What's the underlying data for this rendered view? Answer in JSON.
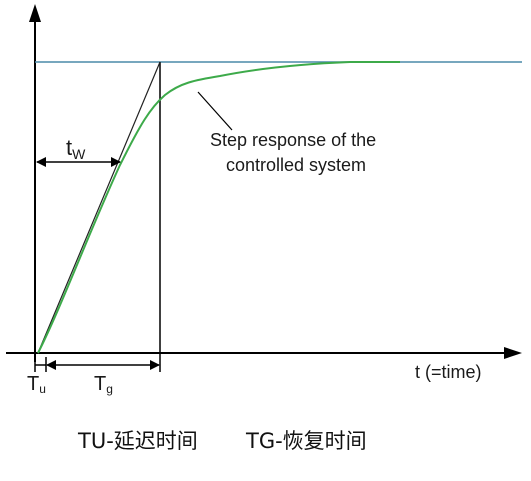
{
  "labels": {
    "tw": {
      "main": "t",
      "sub": "W"
    },
    "tu": {
      "main": "T",
      "sub": "u"
    },
    "tg": {
      "main": "T",
      "sub": "g"
    },
    "annotation_line1": "Step response of the",
    "annotation_line2": "controlled system",
    "x_axis": "t (=time)"
  },
  "caption": {
    "tu": "TU-延迟时间",
    "tg": "TG-恢复时间"
  },
  "colors": {
    "axis": "#000000",
    "setpoint_line": "#4a8aa8",
    "response_curve": "#3daa4a",
    "tangent": "#222222"
  }
}
